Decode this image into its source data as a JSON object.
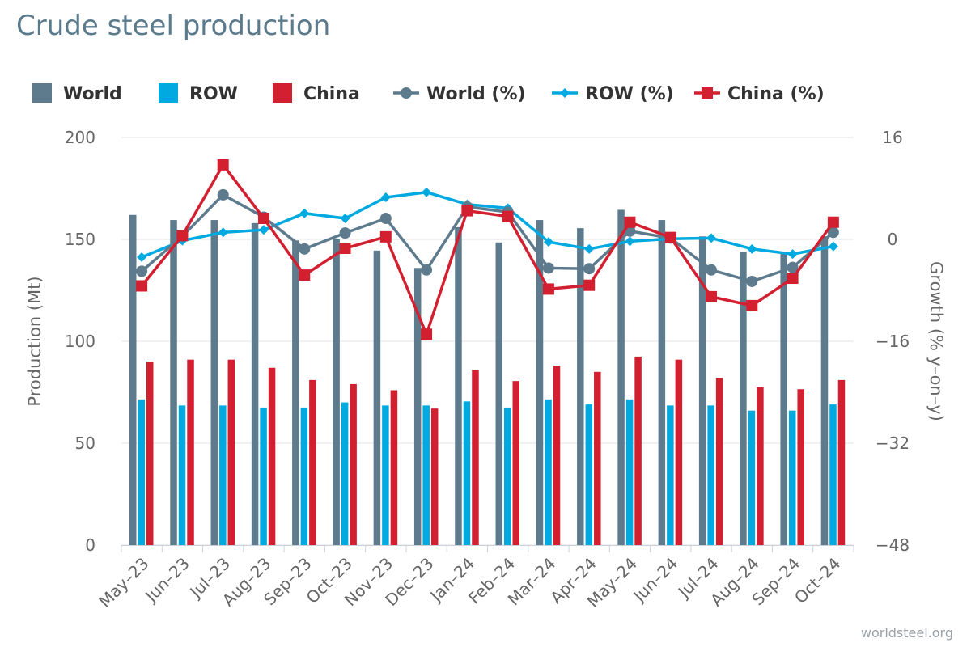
{
  "chart_data": {
    "type": "bar",
    "title": "Crude steel production",
    "source": "worldsteel.org",
    "categories": [
      "May-23",
      "Jun-23",
      "Jul-23",
      "Aug-23",
      "Sep-23",
      "Oct-23",
      "Nov-23",
      "Dec-23",
      "Jan-24",
      "Feb-24",
      "Mar-24",
      "Apr-24",
      "May-24",
      "Jun-24",
      "Jul-24",
      "Aug-24",
      "Sep-24",
      "Oct-24"
    ],
    "y_left": {
      "label": "Production (Mt)",
      "min": 0,
      "max": 200,
      "ticks": [
        0,
        50,
        100,
        150,
        200
      ]
    },
    "y_right": {
      "label": "Growth (% y-on-y)",
      "min": -48,
      "max": 16,
      "ticks": [
        -48,
        -32,
        -16,
        0,
        16
      ]
    },
    "grid": true,
    "legend_position": "top",
    "series": [
      {
        "name": "World",
        "kind": "bar",
        "axis": "left",
        "color": "#5d7b8d",
        "values": [
          162,
          159.5,
          159.5,
          158,
          149.5,
          150,
          144.5,
          136,
          156,
          148.5,
          159.5,
          155.5,
          164.5,
          159.5,
          151.5,
          144,
          143.5,
          151.5
        ]
      },
      {
        "name": "ROW",
        "kind": "bar",
        "axis": "left",
        "color": "#00a9e0",
        "values": [
          71.5,
          68.5,
          68.5,
          67.5,
          67.5,
          70,
          68.5,
          68.5,
          70.5,
          67.5,
          71.5,
          69,
          71.5,
          68.5,
          68.5,
          66,
          66,
          69
        ]
      },
      {
        "name": "China",
        "kind": "bar",
        "axis": "left",
        "color": "#d32031",
        "values": [
          90,
          91,
          91,
          87,
          81,
          79,
          76,
          67,
          86,
          80.5,
          88,
          85,
          92.5,
          91,
          82,
          77.5,
          76.5,
          81
        ]
      },
      {
        "name": "World (%)",
        "kind": "line",
        "axis": "right",
        "marker": "circle",
        "color": "#5d7b8d",
        "values": [
          -5,
          0.5,
          7,
          3.5,
          -1.5,
          1,
          3.3,
          -4.8,
          5.1,
          4.3,
          -4.5,
          -4.6,
          1.3,
          0.2,
          -4.8,
          -6.6,
          -4.4,
          1.1
        ]
      },
      {
        "name": "ROW (%)",
        "kind": "line",
        "axis": "right",
        "marker": "diamond",
        "color": "#00a9e0",
        "values": [
          -2.8,
          -0.2,
          1.1,
          1.5,
          4.1,
          3.3,
          6.6,
          7.4,
          5.5,
          4.9,
          -0.4,
          -1.5,
          -0.3,
          0.1,
          0.2,
          -1.5,
          -2.3,
          -1.1
        ]
      },
      {
        "name": "China (%)",
        "kind": "line",
        "axis": "right",
        "marker": "square",
        "color": "#d32031",
        "values": [
          -7.3,
          0.6,
          11.7,
          3.3,
          -5.6,
          -1.4,
          0.4,
          -14.9,
          4.5,
          3.6,
          -7.8,
          -7.2,
          2.7,
          0.3,
          -9.0,
          -10.4,
          -6.1,
          2.7
        ]
      }
    ]
  }
}
